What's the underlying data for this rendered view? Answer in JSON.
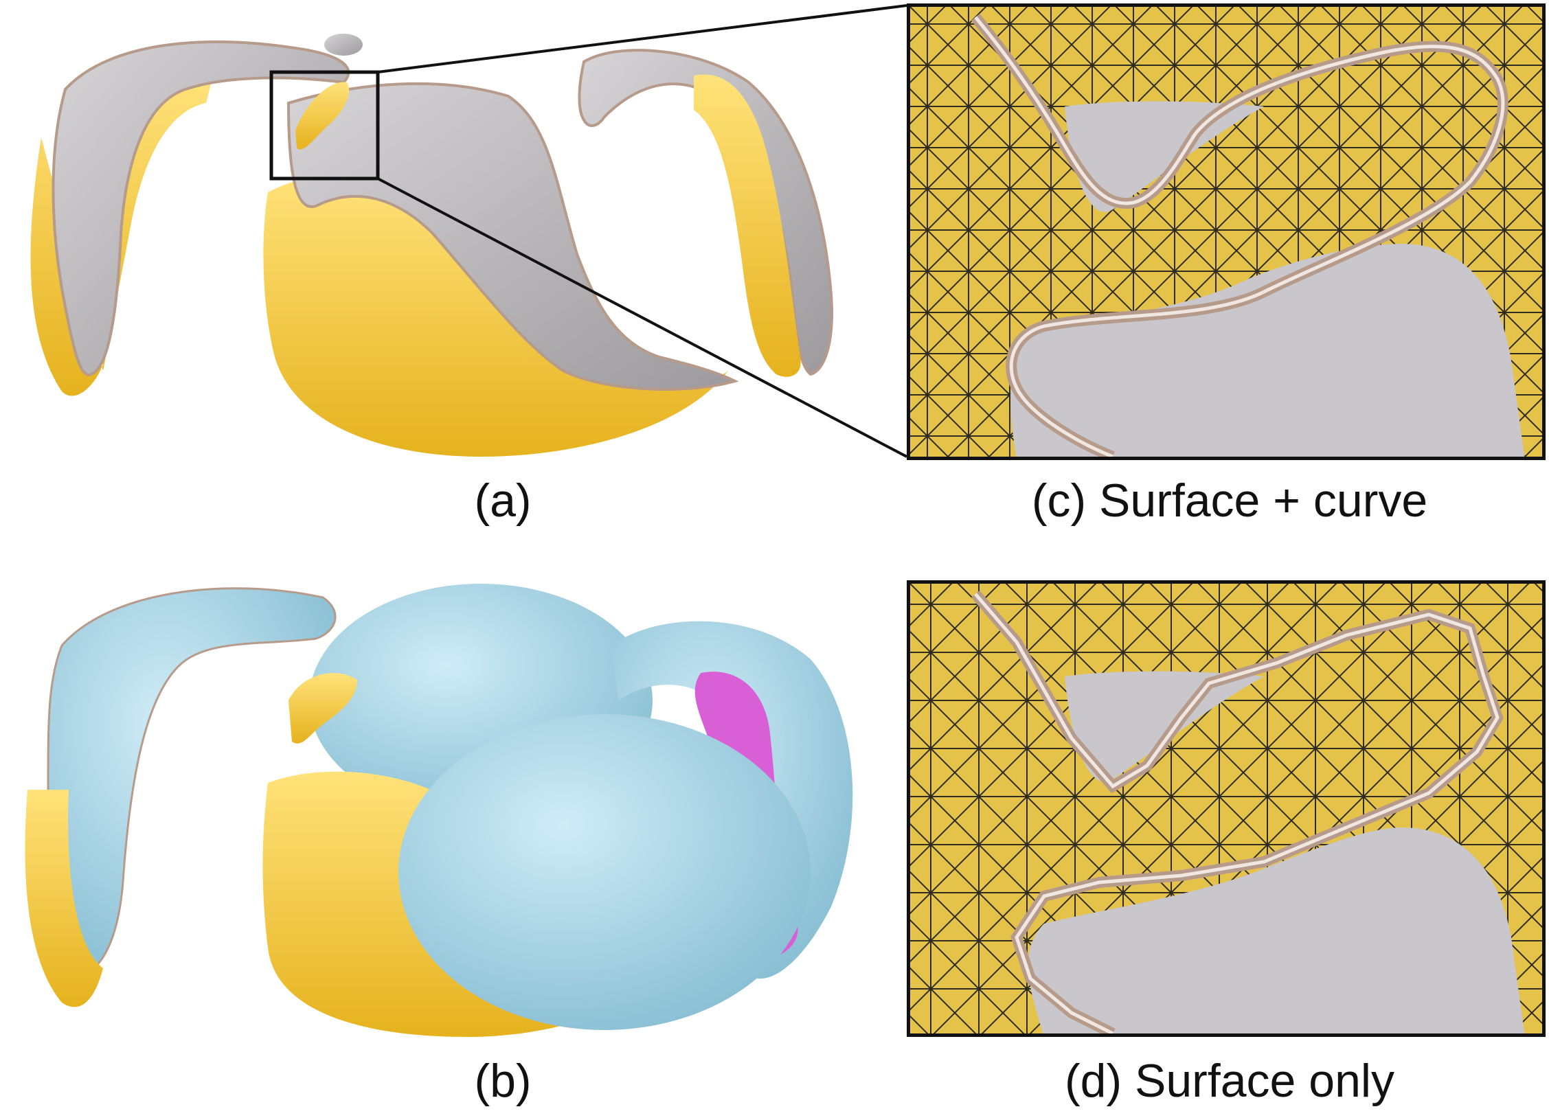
{
  "captions": {
    "a": "(a)",
    "b": "(b)",
    "c": "(c) Surface + curve",
    "d": "(d) Surface only"
  },
  "colors": {
    "yellow_surface": "#f2c83a",
    "gray_surface": "#b8b6b8",
    "blue_surface": "#9fd3e6",
    "magenta_surface": "#d85fd6",
    "curve_tube": "#b69a8a",
    "mesh_edges": "#1a1a1a",
    "frame": "#111111"
  }
}
